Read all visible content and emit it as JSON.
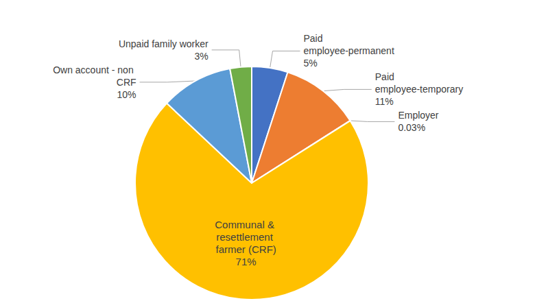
{
  "chart_data": {
    "type": "pie",
    "categories": [
      "Paid employee-permanent",
      "Paid employee-temporary",
      "Employer",
      "Communal & resettlement farmer (CRF)",
      "Own account - non CRF",
      "Unpaid family worker"
    ],
    "values": [
      5,
      11,
      0.03,
      71,
      10,
      3
    ],
    "value_labels": [
      "5%",
      "11%",
      "0.03%",
      "71%",
      "10%",
      "3%"
    ],
    "colors": [
      "#4472c4",
      "#ed7d31",
      "#a5a5a5",
      "#ffc000",
      "#5b9bd5",
      "#70ad47"
    ],
    "data_labels": true
  }
}
